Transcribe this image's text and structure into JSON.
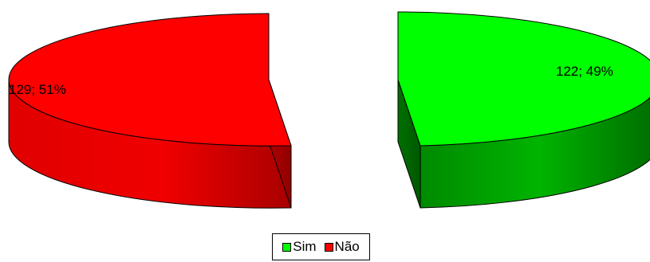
{
  "chart_data": {
    "type": "pie",
    "subtype": "3d-exploded",
    "slices": [
      {
        "label": "Não",
        "value": 129,
        "percent": 51,
        "data_label": "129; 51%",
        "color": "#ff0000",
        "side_color": "#d40000"
      },
      {
        "label": "Sim",
        "value": 122,
        "percent": 49,
        "data_label": "122; 49%",
        "color": "#00ff00",
        "side_color": "#00b000"
      }
    ],
    "legend": {
      "position": "bottom",
      "entries": [
        {
          "label": "Sim",
          "color": "#00ff00"
        },
        {
          "label": "Não",
          "color": "#ff0000"
        }
      ]
    }
  }
}
